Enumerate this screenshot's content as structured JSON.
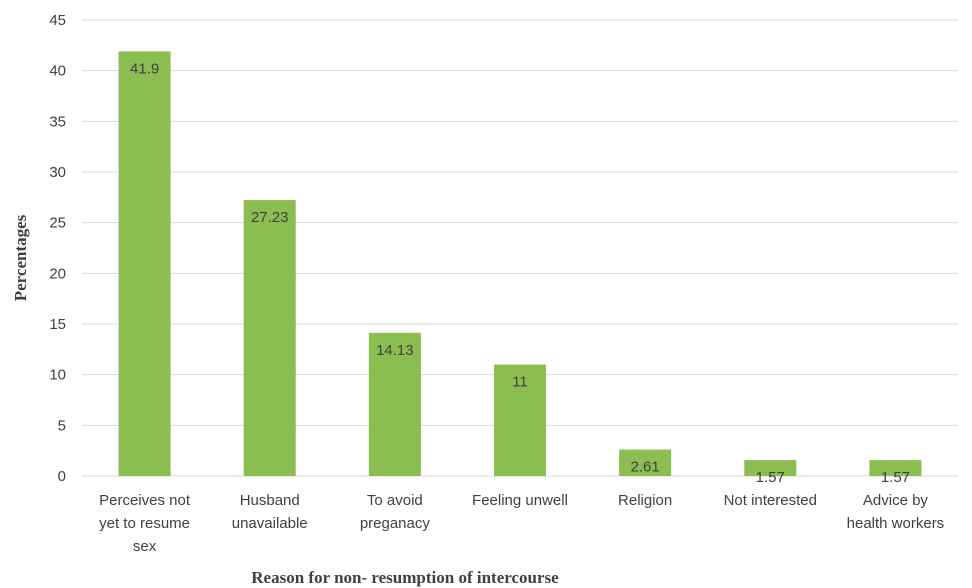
{
  "chart_data": {
    "type": "bar",
    "title": "",
    "xlabel": "Reason for non- resumption of intercourse",
    "ylabel": "Percentages",
    "ylim": [
      0,
      45
    ],
    "yticks": [
      0,
      5,
      10,
      15,
      20,
      25,
      30,
      35,
      40,
      45
    ],
    "grid": true,
    "legend": "none",
    "bar_color": "#8cbd50",
    "categories": [
      [
        "Perceives not",
        "yet to resume",
        "sex"
      ],
      [
        "Husband",
        "unavailable"
      ],
      [
        "To avoid",
        "preganacy"
      ],
      [
        "Feeling unwell"
      ],
      [
        "Religion"
      ],
      [
        "Not interested"
      ],
      [
        "Advice by",
        "health workers"
      ]
    ],
    "values": [
      41.9,
      27.23,
      14.13,
      11,
      2.61,
      1.57,
      1.57
    ],
    "data_labels": [
      "41.9",
      "27.23",
      "14.13",
      "11",
      "2.61",
      "1.57",
      "1.57"
    ]
  }
}
